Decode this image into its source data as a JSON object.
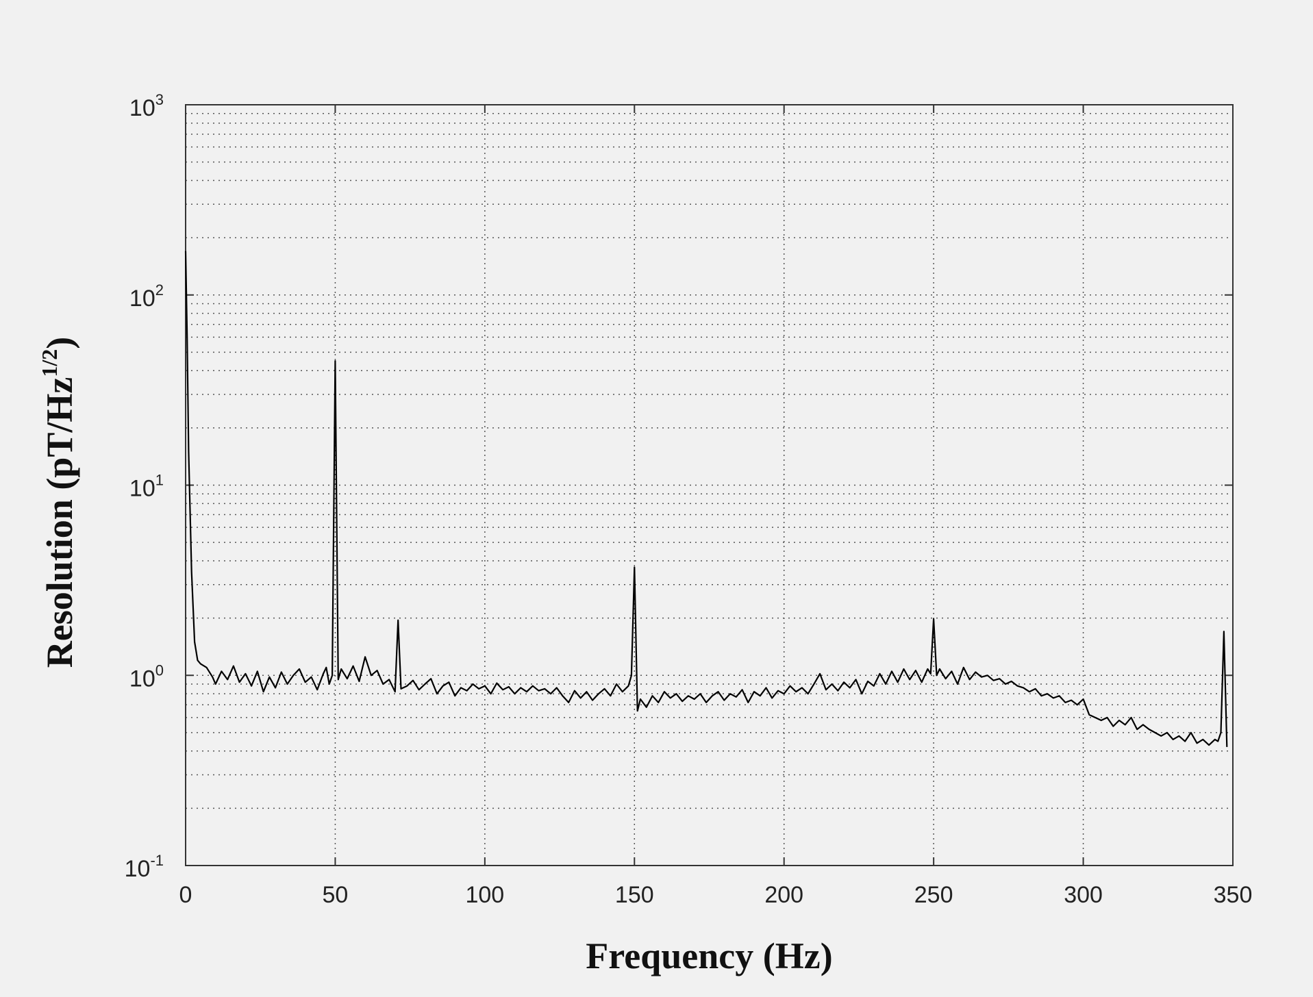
{
  "chart_data": {
    "type": "line",
    "title": "",
    "xlabel": "Frequency (Hz)",
    "ylabel_base": "Resolution (pT/Hz",
    "ylabel_exponent": "1/2",
    "ylabel_close": ")",
    "xlim": [
      0,
      350
    ],
    "ylim": [
      0.1,
      1000
    ],
    "yscale": "log",
    "grid": true,
    "x_ticks": [
      "0",
      "50",
      "100",
      "150",
      "200",
      "250",
      "300",
      "350"
    ],
    "y_ticks": [
      {
        "base": "10",
        "exp": "-1"
      },
      {
        "base": "10",
        "exp": "0"
      },
      {
        "base": "10",
        "exp": "1"
      },
      {
        "base": "10",
        "exp": "2"
      },
      {
        "base": "10",
        "exp": "3"
      }
    ],
    "series": [
      {
        "color": "#000000",
        "points": [
          [
            0,
            170
          ],
          [
            0.5,
            60
          ],
          [
            1,
            15
          ],
          [
            2,
            3.5
          ],
          [
            3,
            1.5
          ],
          [
            4,
            1.2
          ],
          [
            5,
            1.15
          ],
          [
            7,
            1.1
          ],
          [
            9,
            0.98
          ],
          [
            10,
            0.9
          ],
          [
            12,
            1.05
          ],
          [
            14,
            0.95
          ],
          [
            16,
            1.12
          ],
          [
            18,
            0.92
          ],
          [
            20,
            1.02
          ],
          [
            22,
            0.88
          ],
          [
            24,
            1.05
          ],
          [
            26,
            0.82
          ],
          [
            28,
            0.98
          ],
          [
            30,
            0.86
          ],
          [
            32,
            1.04
          ],
          [
            34,
            0.9
          ],
          [
            36,
            1.0
          ],
          [
            38,
            1.08
          ],
          [
            40,
            0.92
          ],
          [
            42,
            0.98
          ],
          [
            44,
            0.84
          ],
          [
            46,
            1.02
          ],
          [
            47,
            1.1
          ],
          [
            48,
            0.9
          ],
          [
            49,
            1.0
          ],
          [
            50,
            45
          ],
          [
            51,
            0.95
          ],
          [
            52,
            1.08
          ],
          [
            54,
            0.96
          ],
          [
            56,
            1.12
          ],
          [
            58,
            0.93
          ],
          [
            60,
            1.25
          ],
          [
            62,
            1.0
          ],
          [
            64,
            1.06
          ],
          [
            66,
            0.9
          ],
          [
            68,
            0.95
          ],
          [
            70,
            0.82
          ],
          [
            71,
            1.95
          ],
          [
            72,
            0.85
          ],
          [
            74,
            0.88
          ],
          [
            76,
            0.94
          ],
          [
            78,
            0.84
          ],
          [
            80,
            0.9
          ],
          [
            82,
            0.96
          ],
          [
            84,
            0.8
          ],
          [
            86,
            0.88
          ],
          [
            88,
            0.92
          ],
          [
            90,
            0.78
          ],
          [
            92,
            0.86
          ],
          [
            94,
            0.83
          ],
          [
            96,
            0.9
          ],
          [
            98,
            0.85
          ],
          [
            100,
            0.88
          ],
          [
            102,
            0.8
          ],
          [
            104,
            0.91
          ],
          [
            106,
            0.84
          ],
          [
            108,
            0.87
          ],
          [
            110,
            0.8
          ],
          [
            112,
            0.86
          ],
          [
            114,
            0.82
          ],
          [
            116,
            0.88
          ],
          [
            118,
            0.83
          ],
          [
            120,
            0.85
          ],
          [
            122,
            0.8
          ],
          [
            124,
            0.86
          ],
          [
            126,
            0.78
          ],
          [
            128,
            0.72
          ],
          [
            130,
            0.83
          ],
          [
            132,
            0.76
          ],
          [
            134,
            0.82
          ],
          [
            136,
            0.74
          ],
          [
            138,
            0.8
          ],
          [
            140,
            0.85
          ],
          [
            142,
            0.78
          ],
          [
            144,
            0.9
          ],
          [
            146,
            0.82
          ],
          [
            148,
            0.88
          ],
          [
            149,
            1.0
          ],
          [
            150,
            3.7
          ],
          [
            151,
            0.65
          ],
          [
            152,
            0.75
          ],
          [
            154,
            0.68
          ],
          [
            156,
            0.78
          ],
          [
            158,
            0.72
          ],
          [
            160,
            0.82
          ],
          [
            162,
            0.76
          ],
          [
            164,
            0.8
          ],
          [
            166,
            0.73
          ],
          [
            168,
            0.78
          ],
          [
            170,
            0.75
          ],
          [
            172,
            0.8
          ],
          [
            174,
            0.72
          ],
          [
            176,
            0.78
          ],
          [
            178,
            0.82
          ],
          [
            180,
            0.74
          ],
          [
            182,
            0.8
          ],
          [
            184,
            0.77
          ],
          [
            186,
            0.84
          ],
          [
            188,
            0.72
          ],
          [
            190,
            0.82
          ],
          [
            192,
            0.78
          ],
          [
            194,
            0.86
          ],
          [
            196,
            0.76
          ],
          [
            198,
            0.83
          ],
          [
            200,
            0.8
          ],
          [
            202,
            0.88
          ],
          [
            204,
            0.82
          ],
          [
            206,
            0.86
          ],
          [
            208,
            0.8
          ],
          [
            210,
            0.9
          ],
          [
            212,
            1.02
          ],
          [
            214,
            0.84
          ],
          [
            216,
            0.9
          ],
          [
            218,
            0.83
          ],
          [
            220,
            0.92
          ],
          [
            222,
            0.86
          ],
          [
            224,
            0.95
          ],
          [
            226,
            0.8
          ],
          [
            228,
            0.93
          ],
          [
            230,
            0.88
          ],
          [
            232,
            1.02
          ],
          [
            234,
            0.9
          ],
          [
            236,
            1.05
          ],
          [
            238,
            0.92
          ],
          [
            240,
            1.08
          ],
          [
            242,
            0.95
          ],
          [
            244,
            1.06
          ],
          [
            246,
            0.92
          ],
          [
            248,
            1.08
          ],
          [
            249,
            1.02
          ],
          [
            250,
            1.98
          ],
          [
            251,
            1.0
          ],
          [
            252,
            1.08
          ],
          [
            254,
            0.96
          ],
          [
            256,
            1.05
          ],
          [
            258,
            0.9
          ],
          [
            260,
            1.1
          ],
          [
            262,
            0.95
          ],
          [
            264,
            1.04
          ],
          [
            266,
            0.98
          ],
          [
            268,
            1.0
          ],
          [
            270,
            0.94
          ],
          [
            272,
            0.96
          ],
          [
            274,
            0.9
          ],
          [
            276,
            0.93
          ],
          [
            278,
            0.88
          ],
          [
            280,
            0.86
          ],
          [
            282,
            0.82
          ],
          [
            284,
            0.85
          ],
          [
            286,
            0.78
          ],
          [
            288,
            0.8
          ],
          [
            290,
            0.76
          ],
          [
            292,
            0.78
          ],
          [
            294,
            0.72
          ],
          [
            296,
            0.74
          ],
          [
            298,
            0.7
          ],
          [
            300,
            0.75
          ],
          [
            302,
            0.62
          ],
          [
            304,
            0.6
          ],
          [
            306,
            0.58
          ],
          [
            308,
            0.6
          ],
          [
            310,
            0.54
          ],
          [
            312,
            0.58
          ],
          [
            314,
            0.55
          ],
          [
            316,
            0.6
          ],
          [
            318,
            0.52
          ],
          [
            320,
            0.55
          ],
          [
            322,
            0.52
          ],
          [
            324,
            0.5
          ],
          [
            326,
            0.48
          ],
          [
            328,
            0.5
          ],
          [
            330,
            0.46
          ],
          [
            332,
            0.48
          ],
          [
            334,
            0.45
          ],
          [
            336,
            0.5
          ],
          [
            338,
            0.44
          ],
          [
            340,
            0.46
          ],
          [
            342,
            0.43
          ],
          [
            344,
            0.46
          ],
          [
            345,
            0.45
          ],
          [
            346,
            0.5
          ],
          [
            347,
            1.7
          ],
          [
            348,
            0.42
          ]
        ]
      }
    ]
  }
}
